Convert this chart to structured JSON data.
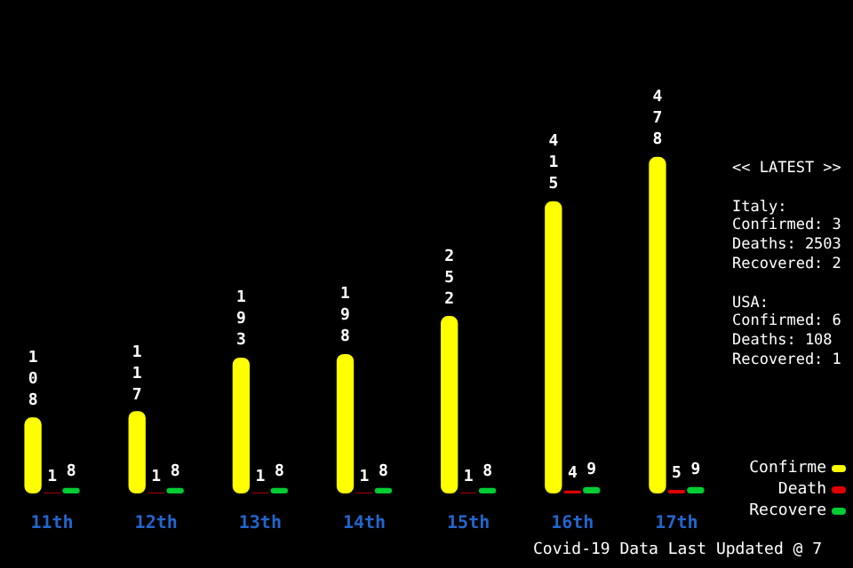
{
  "chart_data": {
    "type": "bar",
    "categories": [
      "11th",
      "12th",
      "13th",
      "14th",
      "15th",
      "16th",
      "17th"
    ],
    "series": [
      {
        "name": "Confirme",
        "color": "#ffff00",
        "values": [
          108,
          117,
          193,
          198,
          252,
          415,
          478
        ]
      },
      {
        "name": "Death",
        "color": "#e00000",
        "values": [
          1,
          1,
          1,
          1,
          1,
          4,
          5
        ]
      },
      {
        "name": "Recovere",
        "color": "#00cc33",
        "values": [
          8,
          8,
          8,
          8,
          8,
          9,
          9
        ]
      }
    ],
    "data_labels": true,
    "legend": "right",
    "tick_labels": "x",
    "annotations": [
      "<< LATEST >>",
      "Italy:",
      "Confirmed: 3",
      "Deaths: 2503",
      "Recovered: 2",
      "USA:",
      "Confirmed: 6",
      "Deaths: 108",
      "Recovered: 1",
      "Covid-19 Data Last Updated @ 7"
    ]
  }
}
